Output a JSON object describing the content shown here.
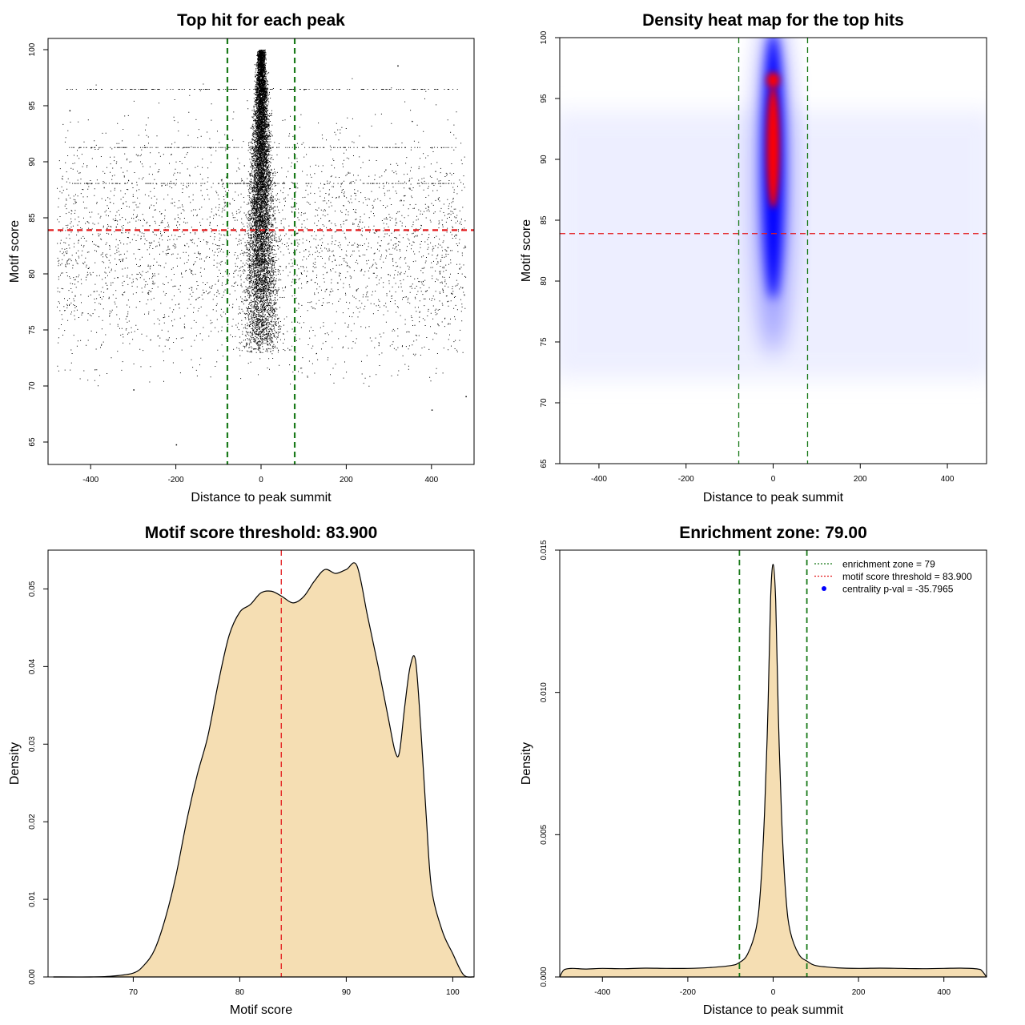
{
  "chart_data": [
    {
      "type": "scatter",
      "title": "Top hit for each peak",
      "xlabel": "Distance to peak summit",
      "ylabel": "Motif score",
      "xlim": [
        -500,
        500
      ],
      "ylim": [
        63,
        101
      ],
      "x_ticks": [
        -400,
        -200,
        0,
        200,
        400
      ],
      "y_ticks": [
        65,
        70,
        75,
        80,
        85,
        90,
        95,
        100
      ],
      "hlines": [
        {
          "y": 83.9,
          "color": "#e31a1c",
          "style": "dashed"
        }
      ],
      "vlines": [
        {
          "x": -79,
          "color": "#1a7a1a",
          "style": "dashed"
        },
        {
          "x": 79,
          "color": "#1a7a1a",
          "style": "dashed"
        }
      ],
      "series": [
        {
          "values_summary": "dense central column around x=0 spanning scores ~73-100; uniform background scatter across x=-480..480 with scores ~70-97",
          "color": "#000000"
        }
      ],
      "sample_points": [
        [
          0,
          100
        ],
        [
          0,
          99
        ],
        [
          0,
          96.5
        ],
        [
          -100,
          96.5
        ],
        [
          100,
          96.5
        ],
        [
          -400,
          91.3
        ],
        [
          400,
          91.3
        ],
        [
          -400,
          88.1
        ],
        [
          400,
          88.1
        ],
        [
          -200,
          64.8
        ],
        [
          -300,
          69.7
        ],
        [
          320,
          98.6
        ],
        [
          400,
          67.9
        ],
        [
          480,
          69.1
        ],
        [
          -450,
          94.6
        ]
      ]
    },
    {
      "type": "heatmap",
      "title": "Density heat map for the top hits",
      "xlabel": "Distance to peak summit",
      "ylabel": "Motif score",
      "xlim": [
        -490,
        490
      ],
      "ylim": [
        65,
        100
      ],
      "x_ticks": [
        -400,
        -200,
        0,
        200,
        400
      ],
      "y_ticks": [
        65,
        70,
        75,
        80,
        85,
        90,
        95,
        100
      ],
      "hlines": [
        {
          "y": 83.9,
          "color": "#e31a1c",
          "style": "dashed"
        }
      ],
      "vlines": [
        {
          "x": -79,
          "color": "#1a7a1a",
          "style": "dashed"
        },
        {
          "x": 79,
          "color": "#1a7a1a",
          "style": "dashed"
        }
      ],
      "color_scale": [
        "#ffffff",
        "#0000ff",
        "#ff0000"
      ],
      "hotspots": [
        {
          "x": 0,
          "y": 91,
          "level": "max"
        },
        {
          "x": 0,
          "y": 96.5,
          "level": "high"
        }
      ],
      "background_band": {
        "y_range": [
          72,
          94
        ],
        "level": "very low"
      }
    },
    {
      "type": "area",
      "title": "Motif score threshold: 83.900",
      "xlabel": "Motif score",
      "ylabel": "Density",
      "xlim": [
        62,
        102
      ],
      "ylim": [
        0,
        0.055
      ],
      "x_ticks": [
        70,
        80,
        90,
        100
      ],
      "y_ticks": [
        0.0,
        0.01,
        0.02,
        0.03,
        0.04,
        0.05
      ],
      "y_tick_labels": [
        "0.00",
        "0.01",
        "0.02",
        "0.03",
        "0.04",
        "0.05"
      ],
      "vlines": [
        {
          "x": 83.9,
          "color": "#e31a1c",
          "style": "dashed"
        }
      ],
      "fill": "#f5deb3",
      "x": [
        62.5,
        66,
        68,
        70,
        71,
        72,
        73,
        74,
        75,
        76,
        77,
        78,
        79,
        80,
        81,
        82,
        83,
        84,
        85,
        86,
        87,
        88,
        89,
        90,
        91,
        92,
        93,
        94,
        94.6,
        95,
        95.5,
        96,
        96.5,
        97,
        97.5,
        98,
        99,
        100,
        101,
        102
      ],
      "values": [
        0.0,
        0.0,
        0.0001,
        0.0005,
        0.0015,
        0.0035,
        0.0075,
        0.013,
        0.02,
        0.026,
        0.031,
        0.038,
        0.044,
        0.047,
        0.048,
        0.0495,
        0.0497,
        0.049,
        0.0482,
        0.049,
        0.051,
        0.0525,
        0.052,
        0.0525,
        0.053,
        0.0465,
        0.04,
        0.033,
        0.029,
        0.029,
        0.035,
        0.04,
        0.0408,
        0.032,
        0.021,
        0.0115,
        0.006,
        0.003,
        0.0003,
        0.0
      ]
    },
    {
      "type": "area",
      "title": "Enrichment zone: 79.00",
      "xlabel": "Distance to peak summit",
      "ylabel": "Density",
      "xlim": [
        -500,
        500
      ],
      "ylim": [
        0,
        0.015
      ],
      "x_ticks": [
        -400,
        -200,
        0,
        200,
        400
      ],
      "y_ticks": [
        0.0,
        0.005,
        0.01,
        0.015
      ],
      "y_tick_labels": [
        "0.000",
        "0.005",
        "0.010",
        "0.015"
      ],
      "vlines": [
        {
          "x": -79,
          "color": "#1a7a1a",
          "style": "dashed"
        },
        {
          "x": 79,
          "color": "#1a7a1a",
          "style": "dashed"
        }
      ],
      "fill": "#f5deb3",
      "x": [
        -500,
        -490,
        -470,
        -440,
        -400,
        -350,
        -300,
        -250,
        -200,
        -150,
        -100,
        -80,
        -60,
        -40,
        -30,
        -20,
        -12,
        -6,
        0,
        6,
        12,
        20,
        30,
        40,
        60,
        80,
        100,
        150,
        200,
        250,
        300,
        350,
        400,
        440,
        480,
        490,
        500
      ],
      "values": [
        0.0,
        0.00025,
        0.0003,
        0.00028,
        0.0003,
        0.00029,
        0.00031,
        0.0003,
        0.0003,
        0.00033,
        0.0004,
        0.0005,
        0.0008,
        0.0017,
        0.003,
        0.0058,
        0.0095,
        0.0133,
        0.0145,
        0.0132,
        0.0093,
        0.0055,
        0.0028,
        0.0016,
        0.0008,
        0.00055,
        0.0004,
        0.00032,
        0.0003,
        0.00031,
        0.0003,
        0.00029,
        0.0003,
        0.00031,
        0.00028,
        0.0002,
        0.0
      ],
      "legend": {
        "placement": "top-right",
        "entries": [
          {
            "label": "enrichment zone = 79",
            "color": "#1a7a1a",
            "style": "dotted-line"
          },
          {
            "label": "motif score threshold = 83.900",
            "color": "#e31a1c",
            "style": "dotted-line"
          },
          {
            "label": "centrality p-val = -35.7965",
            "color": "#0000ff",
            "style": "point"
          }
        ]
      }
    }
  ]
}
